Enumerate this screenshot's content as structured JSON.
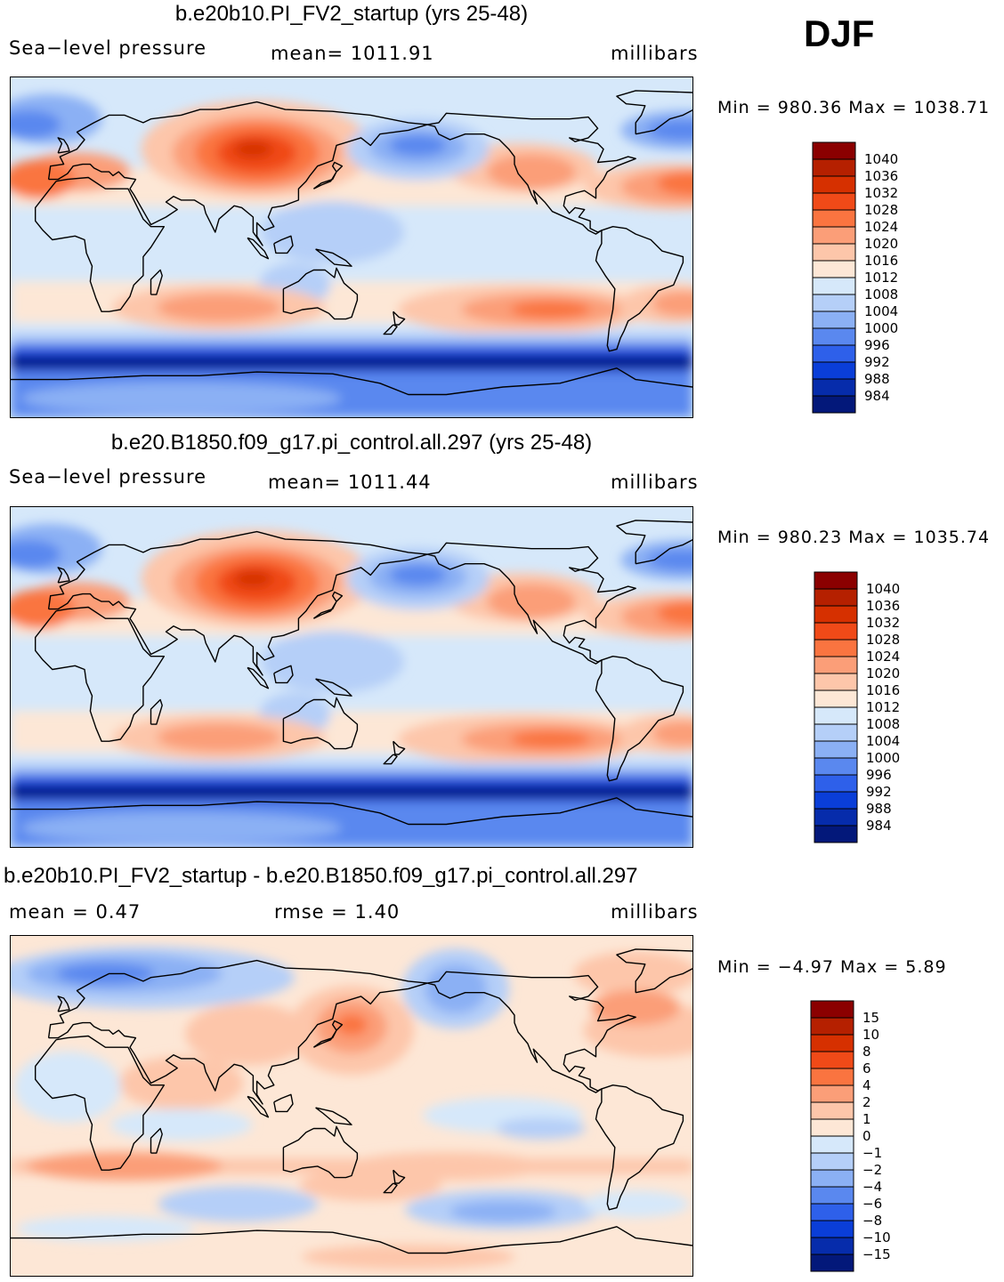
{
  "season": "DJF",
  "panels": [
    {
      "id": "case",
      "title": "b.e20b10.PI_FV2_startup (yrs 25-48)",
      "left_label": "Sea−level pressure",
      "center_label": "mean=  1011.91",
      "units": "millibars",
      "minmax": "Min  =  980.36  Max  =  1038.71",
      "colorbar_labels": [
        "1040",
        "1036",
        "1032",
        "1028",
        "1024",
        "1020",
        "1016",
        "1012",
        "1008",
        "1004",
        "1000",
        "996",
        "992",
        "988",
        "984"
      ]
    },
    {
      "id": "control",
      "title": "b.e20.B1850.f09_g17.pi_control.all.297 (yrs 25-48)",
      "left_label": "Sea−level pressure",
      "center_label": "mean=  1011.44",
      "units": "millibars",
      "minmax": "Min  =  980.23  Max  =  1035.74",
      "colorbar_labels": [
        "1040",
        "1036",
        "1032",
        "1028",
        "1024",
        "1020",
        "1016",
        "1012",
        "1008",
        "1004",
        "1000",
        "996",
        "992",
        "988",
        "984"
      ]
    },
    {
      "id": "difference",
      "title": "b.e20b10.PI_FV2_startup - b.e20.B1850.f09_g17.pi_control.all.297",
      "left_label": "mean  =     0.47",
      "center_label": "rmse  =      1.40",
      "units": "millibars",
      "minmax": "Min  =    −4.97  Max  =       5.89",
      "colorbar_labels": [
        "15",
        "10",
        "8",
        "6",
        "4",
        "2",
        "1",
        "0",
        "−1",
        "−2",
        "−4",
        "−6",
        "−8",
        "−10",
        "−15"
      ]
    }
  ],
  "colors": {
    "palette": [
      "#8b0000",
      "#b52000",
      "#d63000",
      "#f04a18",
      "#fa7440",
      "#fb9e78",
      "#fdc6aa",
      "#fde7d6",
      "#d6e8fa",
      "#b5cff8",
      "#8bb0f4",
      "#5a88ef",
      "#2e60ea",
      "#0a3ed8",
      "#062cab",
      "#03187a"
    ],
    "ocean_mid": "#d6e8fa"
  },
  "chart_data": {
    "type": "heatmap",
    "description": "Global maps of DJF sea-level pressure contours (millibars)",
    "series": [
      {
        "name": "b.e20b10.PI_FV2_startup",
        "mean": 1011.91,
        "min": 980.36,
        "max": 1038.71
      },
      {
        "name": "b.e20.B1850.f09_g17.pi_control.all.297",
        "mean": 1011.44,
        "min": 980.23,
        "max": 1035.74
      },
      {
        "name": "difference",
        "mean": 0.47,
        "rmse": 1.4,
        "min": -4.97,
        "max": 5.89
      }
    ],
    "levels_abs": [
      984,
      988,
      992,
      996,
      1000,
      1004,
      1008,
      1012,
      1016,
      1020,
      1024,
      1028,
      1032,
      1036,
      1040
    ],
    "levels_diff": [
      -15,
      -10,
      -8,
      -6,
      -4,
      -2,
      -1,
      0,
      1,
      2,
      4,
      6,
      8,
      10,
      15
    ]
  }
}
